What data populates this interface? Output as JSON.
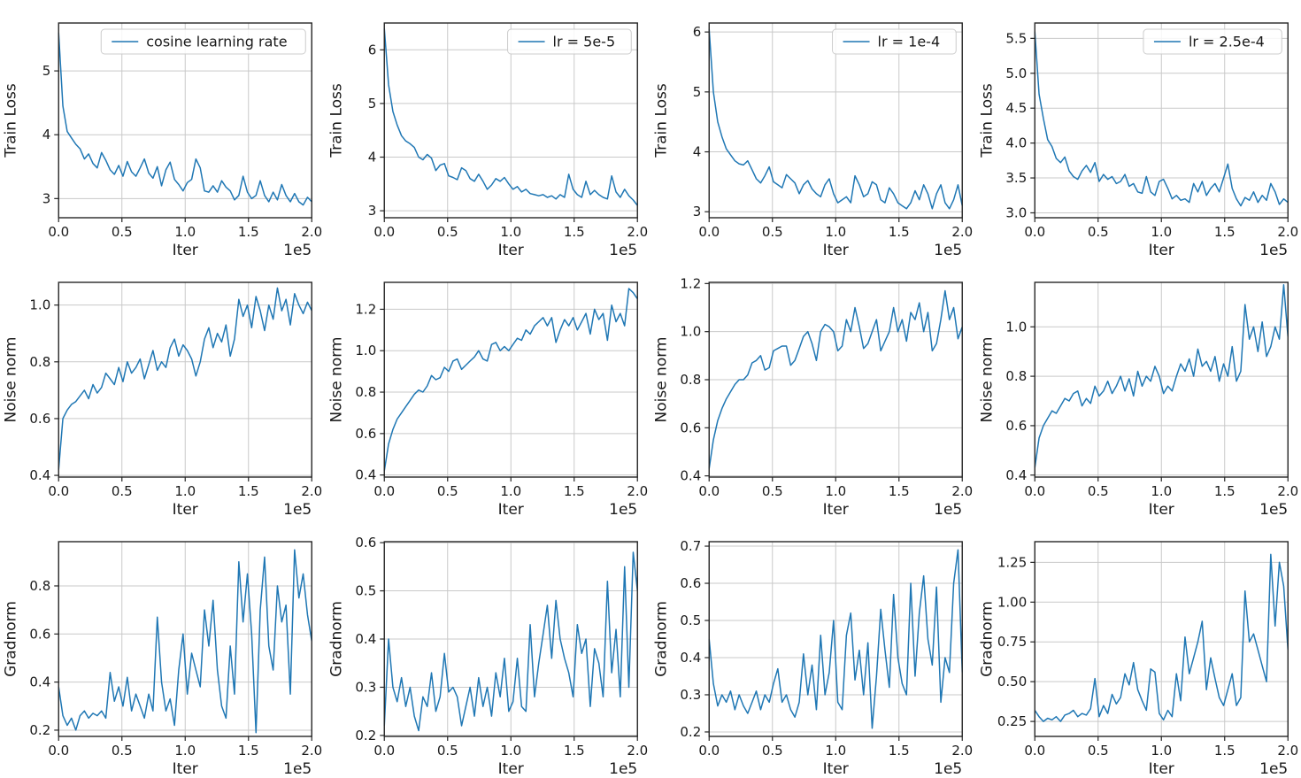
{
  "figure": {
    "background": "#ffffff",
    "line_color": "#1f77b4",
    "grid_color": "#c9c9c9",
    "spine_color": "#262626",
    "xlabel": "Iter",
    "x_offset_text": "1e5",
    "xlim": [
      0,
      200000
    ],
    "xticks": [
      0,
      50000,
      100000,
      150000,
      200000
    ],
    "xtick_labels": [
      "0.0",
      "0.5",
      "1.0",
      "1.5",
      "2.0"
    ],
    "row_labels": [
      "Train Loss",
      "Noise norm",
      "Gradnorm"
    ],
    "column_legends": [
      "cosine learning rate",
      "lr = 5e-5",
      "lr = 1e-4",
      "lr = 2.5e-4"
    ]
  },
  "chart_data": [
    {
      "id": "train-loss-cosine",
      "type": "line",
      "row": 1,
      "col": 1,
      "ylabel": "Train Loss",
      "legend": "cosine learning rate",
      "yticks": [
        3,
        4,
        5
      ],
      "ytick_labels": [
        "3",
        "4",
        "5"
      ],
      "ylim": [
        2.7,
        5.75
      ],
      "x_sampling": "linspace",
      "x_start": 0,
      "x_end": 200000,
      "y": [
        5.6,
        4.45,
        4.05,
        3.95,
        3.85,
        3.78,
        3.62,
        3.7,
        3.55,
        3.48,
        3.72,
        3.6,
        3.45,
        3.38,
        3.52,
        3.35,
        3.58,
        3.42,
        3.35,
        3.48,
        3.62,
        3.4,
        3.32,
        3.5,
        3.2,
        3.45,
        3.57,
        3.3,
        3.22,
        3.12,
        3.25,
        3.3,
        3.62,
        3.48,
        3.12,
        3.1,
        3.2,
        3.1,
        3.28,
        3.18,
        3.12,
        2.98,
        3.05,
        3.35,
        3.1,
        3.0,
        3.05,
        3.28,
        3.05,
        2.95,
        3.1,
        2.98,
        3.22,
        3.05,
        2.95,
        3.08,
        2.95,
        2.9,
        3.02,
        2.95
      ]
    },
    {
      "id": "train-loss-lr5e5",
      "type": "line",
      "row": 1,
      "col": 2,
      "ylabel": "Train Loss",
      "legend": "lr = 5e-5",
      "yticks": [
        3,
        4,
        5,
        6
      ],
      "ytick_labels": [
        "3",
        "4",
        "5",
        "6"
      ],
      "ylim": [
        2.87,
        6.5
      ],
      "x_sampling": "linspace",
      "x_start": 0,
      "x_end": 200000,
      "y": [
        6.4,
        5.35,
        4.85,
        4.6,
        4.4,
        4.3,
        4.25,
        4.18,
        4.0,
        3.95,
        4.05,
        3.98,
        3.75,
        3.85,
        3.88,
        3.65,
        3.62,
        3.58,
        3.8,
        3.75,
        3.6,
        3.55,
        3.68,
        3.55,
        3.4,
        3.48,
        3.6,
        3.55,
        3.62,
        3.5,
        3.4,
        3.45,
        3.35,
        3.4,
        3.32,
        3.3,
        3.28,
        3.3,
        3.25,
        3.28,
        3.22,
        3.3,
        3.25,
        3.68,
        3.4,
        3.3,
        3.25,
        3.55,
        3.3,
        3.38,
        3.3,
        3.25,
        3.22,
        3.65,
        3.35,
        3.25,
        3.4,
        3.28,
        3.2,
        3.1
      ]
    },
    {
      "id": "train-loss-lr1e4",
      "type": "line",
      "row": 1,
      "col": 3,
      "ylabel": "Train Loss",
      "legend": "lr = 1e-4",
      "yticks": [
        3,
        4,
        5,
        6
      ],
      "ytick_labels": [
        "3",
        "4",
        "5",
        "6"
      ],
      "ylim": [
        2.9,
        6.15
      ],
      "x_sampling": "linspace",
      "x_start": 0,
      "x_end": 200000,
      "y": [
        6.05,
        5.0,
        4.5,
        4.25,
        4.05,
        3.95,
        3.85,
        3.8,
        3.78,
        3.85,
        3.7,
        3.55,
        3.48,
        3.6,
        3.75,
        3.5,
        3.45,
        3.4,
        3.62,
        3.55,
        3.48,
        3.3,
        3.45,
        3.52,
        3.38,
        3.3,
        3.25,
        3.45,
        3.55,
        3.3,
        3.15,
        3.2,
        3.25,
        3.15,
        3.6,
        3.45,
        3.25,
        3.3,
        3.5,
        3.45,
        3.2,
        3.15,
        3.4,
        3.3,
        3.15,
        3.1,
        3.05,
        3.15,
        3.35,
        3.2,
        3.45,
        3.3,
        3.05,
        3.3,
        3.45,
        3.15,
        3.05,
        3.2,
        3.45,
        3.1
      ]
    },
    {
      "id": "train-loss-lr25e4",
      "type": "line",
      "row": 1,
      "col": 4,
      "ylabel": "Train Loss",
      "legend": "lr = 2.5e-4",
      "yticks": [
        3.0,
        3.5,
        4.0,
        4.5,
        5.0,
        5.5
      ],
      "ytick_labels": [
        "3.0",
        "3.5",
        "4.0",
        "4.5",
        "5.0",
        "5.5"
      ],
      "ylim": [
        2.93,
        5.72
      ],
      "x_sampling": "linspace",
      "x_start": 0,
      "x_end": 200000,
      "y": [
        5.6,
        4.7,
        4.35,
        4.05,
        3.95,
        3.78,
        3.72,
        3.8,
        3.6,
        3.52,
        3.48,
        3.6,
        3.68,
        3.58,
        3.72,
        3.45,
        3.55,
        3.48,
        3.52,
        3.42,
        3.45,
        3.55,
        3.38,
        3.42,
        3.3,
        3.28,
        3.52,
        3.3,
        3.25,
        3.45,
        3.48,
        3.35,
        3.2,
        3.25,
        3.18,
        3.2,
        3.15,
        3.42,
        3.3,
        3.45,
        3.25,
        3.35,
        3.42,
        3.3,
        3.5,
        3.7,
        3.35,
        3.2,
        3.1,
        3.22,
        3.18,
        3.3,
        3.15,
        3.25,
        3.18,
        3.42,
        3.3,
        3.12,
        3.2,
        3.15
      ]
    },
    {
      "id": "noise-norm-cosine",
      "type": "line",
      "row": 2,
      "col": 1,
      "ylabel": "Noise norm",
      "legend": null,
      "yticks": [
        0.4,
        0.6,
        0.8,
        1.0
      ],
      "ytick_labels": [
        "0.4",
        "0.6",
        "0.8",
        "1.0"
      ],
      "ylim": [
        0.394,
        1.08
      ],
      "x_sampling": "linspace",
      "x_start": 0,
      "x_end": 200000,
      "y": [
        0.42,
        0.6,
        0.63,
        0.65,
        0.66,
        0.68,
        0.7,
        0.67,
        0.72,
        0.69,
        0.71,
        0.76,
        0.74,
        0.72,
        0.78,
        0.73,
        0.8,
        0.76,
        0.78,
        0.81,
        0.74,
        0.79,
        0.84,
        0.77,
        0.8,
        0.78,
        0.85,
        0.88,
        0.82,
        0.86,
        0.84,
        0.81,
        0.75,
        0.8,
        0.88,
        0.92,
        0.85,
        0.9,
        0.87,
        0.93,
        0.82,
        0.88,
        1.02,
        0.96,
        1.0,
        0.92,
        1.03,
        0.98,
        0.91,
        1.0,
        0.95,
        1.06,
        0.98,
        1.02,
        0.93,
        1.04,
        1.0,
        0.97,
        1.01,
        0.98
      ]
    },
    {
      "id": "noise-norm-lr5e5",
      "type": "line",
      "row": 2,
      "col": 2,
      "ylabel": "Noise norm",
      "legend": null,
      "yticks": [
        0.4,
        0.6,
        0.8,
        1.0,
        1.2
      ],
      "ytick_labels": [
        "0.4",
        "0.6",
        "0.8",
        "1.0",
        "1.2"
      ],
      "ylim": [
        0.39,
        1.33
      ],
      "x_sampling": "linspace",
      "x_start": 0,
      "x_end": 200000,
      "y": [
        0.42,
        0.55,
        0.62,
        0.67,
        0.7,
        0.73,
        0.76,
        0.79,
        0.81,
        0.8,
        0.83,
        0.88,
        0.86,
        0.87,
        0.92,
        0.9,
        0.95,
        0.96,
        0.91,
        0.93,
        0.95,
        0.97,
        1.0,
        0.96,
        0.95,
        1.03,
        1.04,
        1.0,
        1.02,
        1.0,
        1.03,
        1.06,
        1.05,
        1.1,
        1.08,
        1.12,
        1.14,
        1.16,
        1.12,
        1.16,
        1.04,
        1.1,
        1.15,
        1.12,
        1.16,
        1.1,
        1.14,
        1.18,
        1.08,
        1.2,
        1.15,
        1.18,
        1.05,
        1.22,
        1.14,
        1.18,
        1.12,
        1.3,
        1.28,
        1.25
      ]
    },
    {
      "id": "noise-norm-lr1e4",
      "type": "line",
      "row": 2,
      "col": 3,
      "ylabel": "Noise norm",
      "legend": null,
      "yticks": [
        0.4,
        0.6,
        0.8,
        1.0,
        1.2
      ],
      "ytick_labels": [
        "0.4",
        "0.6",
        "0.8",
        "1.0",
        "1.2"
      ],
      "ylim": [
        0.395,
        1.205
      ],
      "x_sampling": "linspace",
      "x_start": 0,
      "x_end": 200000,
      "y": [
        0.43,
        0.55,
        0.63,
        0.68,
        0.72,
        0.75,
        0.78,
        0.8,
        0.8,
        0.82,
        0.87,
        0.88,
        0.9,
        0.84,
        0.85,
        0.92,
        0.93,
        0.94,
        0.94,
        0.86,
        0.88,
        0.93,
        0.98,
        1.0,
        0.95,
        0.88,
        1.0,
        1.03,
        1.02,
        1.0,
        0.92,
        0.94,
        1.05,
        1.0,
        1.1,
        1.02,
        0.93,
        0.95,
        1.0,
        1.05,
        0.92,
        0.96,
        1.0,
        1.1,
        1.0,
        1.05,
        0.96,
        1.08,
        1.05,
        1.12,
        1.0,
        1.08,
        0.92,
        0.95,
        1.05,
        1.17,
        1.05,
        1.1,
        0.97,
        1.02
      ]
    },
    {
      "id": "noise-norm-lr25e4",
      "type": "line",
      "row": 2,
      "col": 4,
      "ylabel": "Noise norm",
      "legend": null,
      "yticks": [
        0.4,
        0.6,
        0.8,
        1.0
      ],
      "ytick_labels": [
        "0.4",
        "0.6",
        "0.8",
        "1.0"
      ],
      "ylim": [
        0.392,
        1.18
      ],
      "x_sampling": "linspace",
      "x_start": 0,
      "x_end": 200000,
      "y": [
        0.43,
        0.55,
        0.6,
        0.63,
        0.66,
        0.65,
        0.68,
        0.71,
        0.7,
        0.73,
        0.74,
        0.68,
        0.71,
        0.69,
        0.76,
        0.72,
        0.74,
        0.78,
        0.73,
        0.76,
        0.8,
        0.74,
        0.79,
        0.72,
        0.82,
        0.76,
        0.8,
        0.78,
        0.84,
        0.8,
        0.73,
        0.76,
        0.74,
        0.8,
        0.85,
        0.82,
        0.87,
        0.8,
        0.91,
        0.84,
        0.86,
        0.82,
        0.88,
        0.78,
        0.85,
        0.8,
        0.92,
        0.78,
        0.82,
        1.09,
        0.95,
        1.0,
        0.9,
        1.02,
        0.88,
        0.92,
        1.0,
        0.95,
        1.17,
        0.96
      ]
    },
    {
      "id": "gradnorm-cosine",
      "type": "line",
      "row": 3,
      "col": 1,
      "ylabel": "Gradnorm",
      "legend": null,
      "yticks": [
        0.2,
        0.4,
        0.6,
        0.8
      ],
      "ytick_labels": [
        "0.2",
        "0.4",
        "0.6",
        "0.8"
      ],
      "ylim": [
        0.174,
        0.984
      ],
      "x_sampling": "linspace",
      "x_start": 0,
      "x_end": 200000,
      "y": [
        0.38,
        0.26,
        0.22,
        0.25,
        0.2,
        0.26,
        0.28,
        0.25,
        0.27,
        0.26,
        0.28,
        0.25,
        0.44,
        0.32,
        0.38,
        0.3,
        0.42,
        0.28,
        0.35,
        0.3,
        0.25,
        0.35,
        0.28,
        0.67,
        0.4,
        0.28,
        0.33,
        0.22,
        0.45,
        0.6,
        0.35,
        0.52,
        0.45,
        0.38,
        0.7,
        0.55,
        0.74,
        0.45,
        0.3,
        0.25,
        0.55,
        0.35,
        0.9,
        0.65,
        0.85,
        0.6,
        0.19,
        0.7,
        0.92,
        0.55,
        0.45,
        0.8,
        0.65,
        0.72,
        0.35,
        0.95,
        0.75,
        0.85,
        0.68,
        0.57
      ]
    },
    {
      "id": "gradnorm-lr5e5",
      "type": "line",
      "row": 3,
      "col": 2,
      "ylabel": "Gradnorm",
      "legend": null,
      "yticks": [
        0.2,
        0.3,
        0.4,
        0.5,
        0.6
      ],
      "ytick_labels": [
        "0.2",
        "0.3",
        "0.4",
        "0.5",
        "0.6"
      ],
      "ylim": [
        0.198,
        0.602
      ],
      "x_sampling": "linspace",
      "x_start": 0,
      "x_end": 200000,
      "y": [
        0.22,
        0.4,
        0.3,
        0.27,
        0.32,
        0.26,
        0.3,
        0.24,
        0.21,
        0.28,
        0.26,
        0.33,
        0.25,
        0.28,
        0.37,
        0.29,
        0.3,
        0.28,
        0.22,
        0.26,
        0.3,
        0.24,
        0.32,
        0.26,
        0.3,
        0.24,
        0.33,
        0.28,
        0.36,
        0.25,
        0.27,
        0.36,
        0.26,
        0.25,
        0.43,
        0.28,
        0.35,
        0.41,
        0.47,
        0.36,
        0.48,
        0.4,
        0.36,
        0.33,
        0.28,
        0.43,
        0.37,
        0.4,
        0.26,
        0.38,
        0.35,
        0.28,
        0.52,
        0.33,
        0.42,
        0.28,
        0.55,
        0.3,
        0.58,
        0.5
      ]
    },
    {
      "id": "gradnorm-lr1e4",
      "type": "line",
      "row": 3,
      "col": 3,
      "ylabel": "Gradnorm",
      "legend": null,
      "yticks": [
        0.2,
        0.3,
        0.4,
        0.5,
        0.6,
        0.7
      ],
      "ytick_labels": [
        "0.2",
        "0.3",
        "0.4",
        "0.5",
        "0.6",
        "0.7"
      ],
      "ylim": [
        0.188,
        0.712
      ],
      "x_sampling": "linspace",
      "x_start": 0,
      "x_end": 200000,
      "y": [
        0.45,
        0.33,
        0.27,
        0.3,
        0.28,
        0.31,
        0.26,
        0.3,
        0.27,
        0.25,
        0.28,
        0.31,
        0.26,
        0.3,
        0.28,
        0.33,
        0.37,
        0.28,
        0.3,
        0.26,
        0.24,
        0.28,
        0.41,
        0.3,
        0.38,
        0.26,
        0.46,
        0.3,
        0.36,
        0.5,
        0.28,
        0.26,
        0.46,
        0.52,
        0.34,
        0.42,
        0.3,
        0.44,
        0.21,
        0.35,
        0.53,
        0.42,
        0.32,
        0.57,
        0.4,
        0.33,
        0.3,
        0.6,
        0.35,
        0.52,
        0.62,
        0.45,
        0.38,
        0.59,
        0.28,
        0.4,
        0.36,
        0.6,
        0.69,
        0.36
      ]
    },
    {
      "id": "gradnorm-lr25e4",
      "type": "line",
      "row": 3,
      "col": 4,
      "ylabel": "Gradnorm",
      "legend": null,
      "yticks": [
        0.25,
        0.5,
        0.75,
        1.0,
        1.25
      ],
      "ytick_labels": [
        "0.25",
        "0.50",
        "0.75",
        "1.00",
        "1.25"
      ],
      "ylim": [
        0.156,
        1.38
      ],
      "x_sampling": "linspace",
      "x_start": 0,
      "x_end": 200000,
      "y": [
        0.32,
        0.28,
        0.25,
        0.27,
        0.26,
        0.28,
        0.25,
        0.29,
        0.3,
        0.32,
        0.28,
        0.3,
        0.29,
        0.33,
        0.52,
        0.28,
        0.35,
        0.3,
        0.42,
        0.36,
        0.4,
        0.55,
        0.48,
        0.62,
        0.45,
        0.38,
        0.32,
        0.58,
        0.56,
        0.3,
        0.26,
        0.32,
        0.28,
        0.55,
        0.38,
        0.78,
        0.55,
        0.65,
        0.75,
        0.88,
        0.45,
        0.65,
        0.52,
        0.4,
        0.35,
        0.45,
        0.55,
        0.35,
        0.4,
        1.07,
        0.75,
        0.8,
        0.7,
        0.6,
        0.5,
        1.3,
        0.85,
        1.25,
        1.1,
        0.7
      ]
    }
  ]
}
